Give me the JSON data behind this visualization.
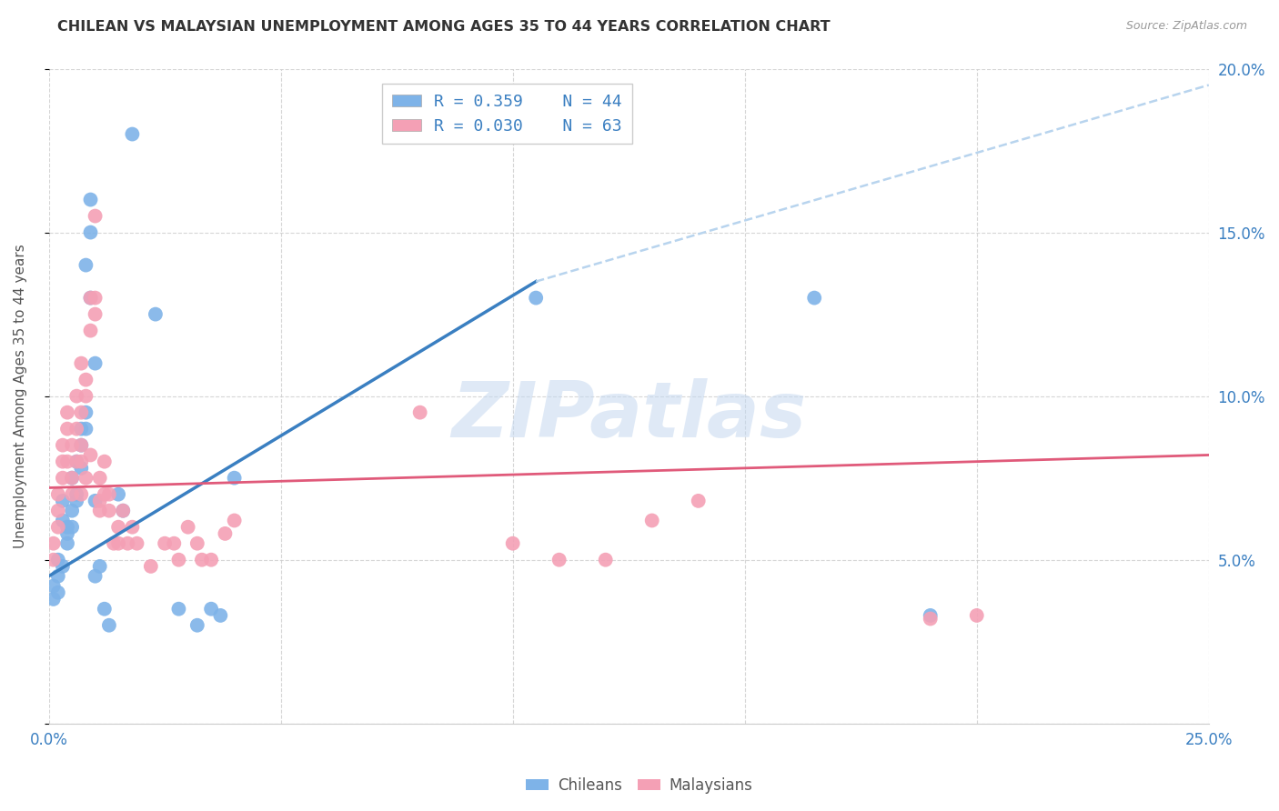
{
  "title": "CHILEAN VS MALAYSIAN UNEMPLOYMENT AMONG AGES 35 TO 44 YEARS CORRELATION CHART",
  "source": "Source: ZipAtlas.com",
  "ylabel": "Unemployment Among Ages 35 to 44 years",
  "xlim": [
    0.0,
    0.25
  ],
  "ylim": [
    0.0,
    0.2
  ],
  "xticks": [
    0.0,
    0.05,
    0.1,
    0.15,
    0.2,
    0.25
  ],
  "yticks": [
    0.0,
    0.05,
    0.1,
    0.15,
    0.2
  ],
  "xticklabels": [
    "0.0%",
    "",
    "",
    "",
    "",
    "25.0%"
  ],
  "right_yticklabels": [
    "",
    "5.0%",
    "10.0%",
    "15.0%",
    "20.0%"
  ],
  "chilean_color": "#7EB3E8",
  "malaysian_color": "#F4A0B5",
  "chilean_line_color": "#3A7FC1",
  "malaysian_line_color": "#E05A7A",
  "dashed_line_color": "#B8D4EE",
  "legend_R_chilean": "R = 0.359",
  "legend_N_chilean": "N = 44",
  "legend_R_malaysian": "R = 0.030",
  "legend_N_malaysian": "N = 63",
  "watermark": "ZIPatlas",
  "chileans_label": "Chileans",
  "malaysians_label": "Malaysians",
  "chilean_line": [
    [
      0.0,
      0.045
    ],
    [
      0.105,
      0.135
    ]
  ],
  "malaysian_line": [
    [
      0.0,
      0.072
    ],
    [
      0.25,
      0.082
    ]
  ],
  "dashed_line": [
    [
      0.105,
      0.135
    ],
    [
      0.25,
      0.195
    ]
  ],
  "chilean_points": [
    [
      0.001,
      0.042
    ],
    [
      0.001,
      0.038
    ],
    [
      0.002,
      0.045
    ],
    [
      0.002,
      0.04
    ],
    [
      0.002,
      0.05
    ],
    [
      0.003,
      0.062
    ],
    [
      0.003,
      0.048
    ],
    [
      0.003,
      0.068
    ],
    [
      0.004,
      0.055
    ],
    [
      0.004,
      0.06
    ],
    [
      0.004,
      0.058
    ],
    [
      0.005,
      0.065
    ],
    [
      0.005,
      0.06
    ],
    [
      0.005,
      0.075
    ],
    [
      0.006,
      0.07
    ],
    [
      0.006,
      0.08
    ],
    [
      0.006,
      0.068
    ],
    [
      0.007,
      0.09
    ],
    [
      0.007,
      0.085
    ],
    [
      0.007,
      0.078
    ],
    [
      0.008,
      0.09
    ],
    [
      0.008,
      0.095
    ],
    [
      0.008,
      0.14
    ],
    [
      0.009,
      0.13
    ],
    [
      0.009,
      0.15
    ],
    [
      0.009,
      0.16
    ],
    [
      0.01,
      0.045
    ],
    [
      0.01,
      0.11
    ],
    [
      0.01,
      0.068
    ],
    [
      0.011,
      0.048
    ],
    [
      0.012,
      0.035
    ],
    [
      0.013,
      0.03
    ],
    [
      0.015,
      0.07
    ],
    [
      0.016,
      0.065
    ],
    [
      0.018,
      0.18
    ],
    [
      0.023,
      0.125
    ],
    [
      0.028,
      0.035
    ],
    [
      0.032,
      0.03
    ],
    [
      0.035,
      0.035
    ],
    [
      0.037,
      0.033
    ],
    [
      0.04,
      0.075
    ],
    [
      0.105,
      0.13
    ],
    [
      0.165,
      0.13
    ],
    [
      0.19,
      0.033
    ]
  ],
  "malaysian_points": [
    [
      0.001,
      0.05
    ],
    [
      0.001,
      0.055
    ],
    [
      0.002,
      0.06
    ],
    [
      0.002,
      0.07
    ],
    [
      0.002,
      0.065
    ],
    [
      0.003,
      0.075
    ],
    [
      0.003,
      0.085
    ],
    [
      0.003,
      0.08
    ],
    [
      0.004,
      0.09
    ],
    [
      0.004,
      0.08
    ],
    [
      0.004,
      0.095
    ],
    [
      0.005,
      0.07
    ],
    [
      0.005,
      0.085
    ],
    [
      0.005,
      0.075
    ],
    [
      0.006,
      0.08
    ],
    [
      0.006,
      0.09
    ],
    [
      0.006,
      0.1
    ],
    [
      0.007,
      0.11
    ],
    [
      0.007,
      0.07
    ],
    [
      0.007,
      0.095
    ],
    [
      0.007,
      0.08
    ],
    [
      0.007,
      0.085
    ],
    [
      0.008,
      0.1
    ],
    [
      0.008,
      0.105
    ],
    [
      0.008,
      0.075
    ],
    [
      0.009,
      0.13
    ],
    [
      0.009,
      0.082
    ],
    [
      0.009,
      0.12
    ],
    [
      0.01,
      0.155
    ],
    [
      0.01,
      0.125
    ],
    [
      0.01,
      0.13
    ],
    [
      0.011,
      0.068
    ],
    [
      0.011,
      0.065
    ],
    [
      0.011,
      0.075
    ],
    [
      0.012,
      0.07
    ],
    [
      0.012,
      0.08
    ],
    [
      0.013,
      0.065
    ],
    [
      0.013,
      0.07
    ],
    [
      0.014,
      0.055
    ],
    [
      0.015,
      0.06
    ],
    [
      0.015,
      0.055
    ],
    [
      0.016,
      0.065
    ],
    [
      0.017,
      0.055
    ],
    [
      0.018,
      0.06
    ],
    [
      0.019,
      0.055
    ],
    [
      0.022,
      0.048
    ],
    [
      0.025,
      0.055
    ],
    [
      0.027,
      0.055
    ],
    [
      0.028,
      0.05
    ],
    [
      0.03,
      0.06
    ],
    [
      0.032,
      0.055
    ],
    [
      0.033,
      0.05
    ],
    [
      0.035,
      0.05
    ],
    [
      0.038,
      0.058
    ],
    [
      0.04,
      0.062
    ],
    [
      0.08,
      0.095
    ],
    [
      0.1,
      0.055
    ],
    [
      0.11,
      0.05
    ],
    [
      0.12,
      0.05
    ],
    [
      0.13,
      0.062
    ],
    [
      0.14,
      0.068
    ],
    [
      0.19,
      0.032
    ],
    [
      0.2,
      0.033
    ]
  ]
}
